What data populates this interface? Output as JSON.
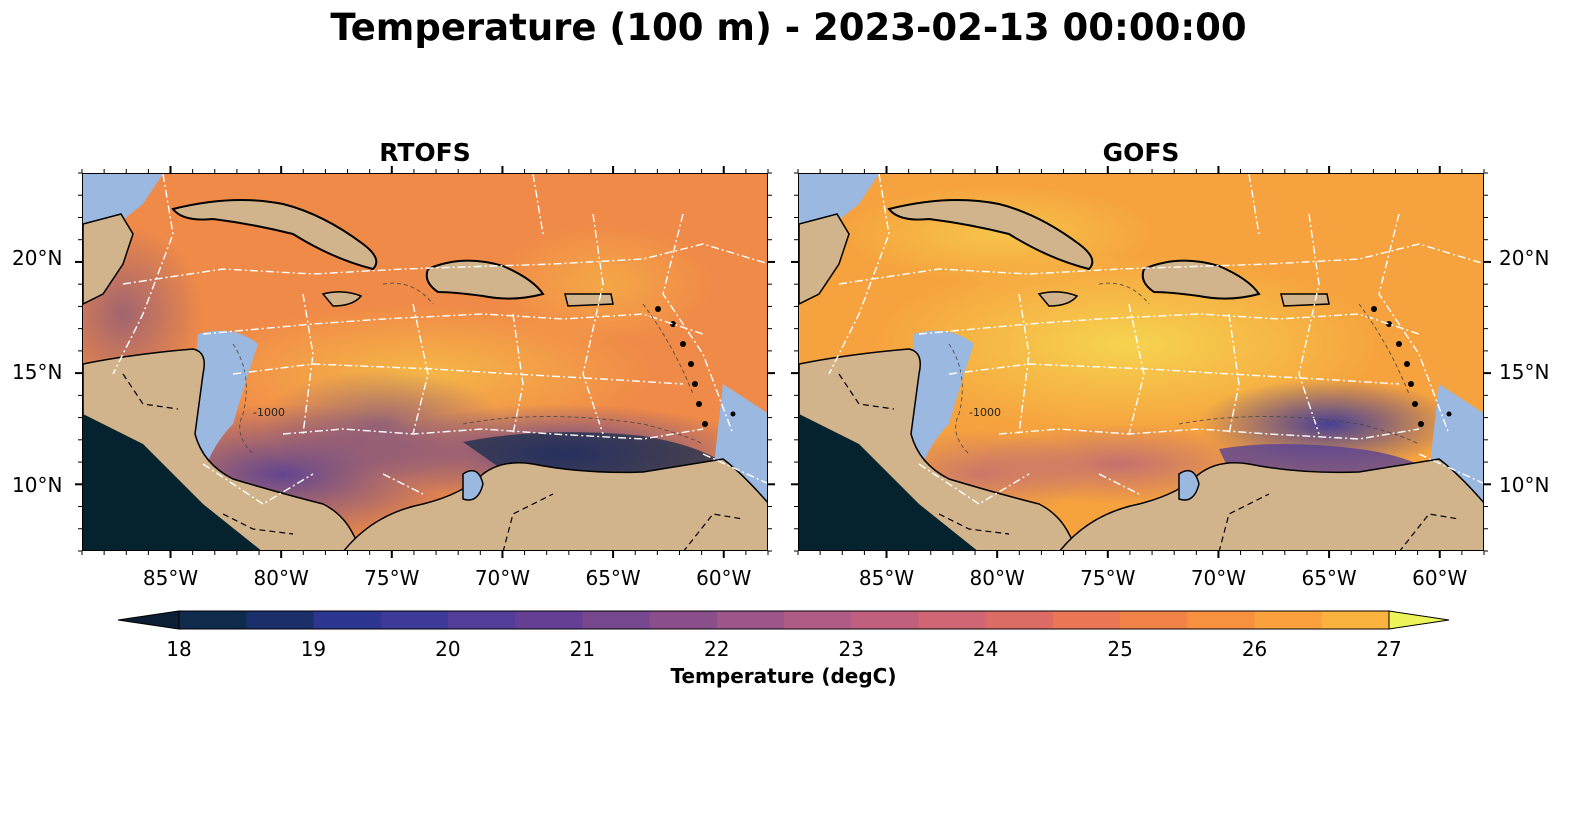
{
  "title": "Temperature (100 m) - 2023-02-13 00:00:00",
  "panels": [
    {
      "title": "RTOFS"
    },
    {
      "title": "GOFS"
    }
  ],
  "lon_ticks": [
    "85°W",
    "80°W",
    "75°W",
    "70°W",
    "65°W",
    "60°W"
  ],
  "lat_ticks": [
    "20°N",
    "15°N",
    "10°N"
  ],
  "contour_labels": [
    "-1000",
    "-1000"
  ],
  "colorbar": {
    "label": "Temperature (degC)",
    "ticks": [
      "18",
      "19",
      "20",
      "21",
      "22",
      "23",
      "24",
      "25",
      "26",
      "27"
    ],
    "min": 18,
    "max": 27,
    "step": 0.5,
    "extend": "both",
    "colormap": "thermal",
    "colors": [
      "#0b1e33",
      "#0f2a4a",
      "#1b2f6b",
      "#2c358f",
      "#3e3a9a",
      "#523e98",
      "#653f93",
      "#77478f",
      "#8a4f8b",
      "#9c568a",
      "#ae5b86",
      "#c15f7e",
      "#d06574",
      "#de6c66",
      "#ea7656",
      "#f28348",
      "#f7903f",
      "#faa03c",
      "#fbb23e",
      "#f8c646",
      "#f2dc52"
    ]
  },
  "map": {
    "extent_lon": [
      -89,
      -58
    ],
    "extent_lat": [
      7,
      24
    ],
    "land_color": "#d2b48c",
    "shallow_water_color": "#9ab8e0",
    "deep_cold_color": "#05222f",
    "boundary_line_color": "#ffffff"
  }
}
